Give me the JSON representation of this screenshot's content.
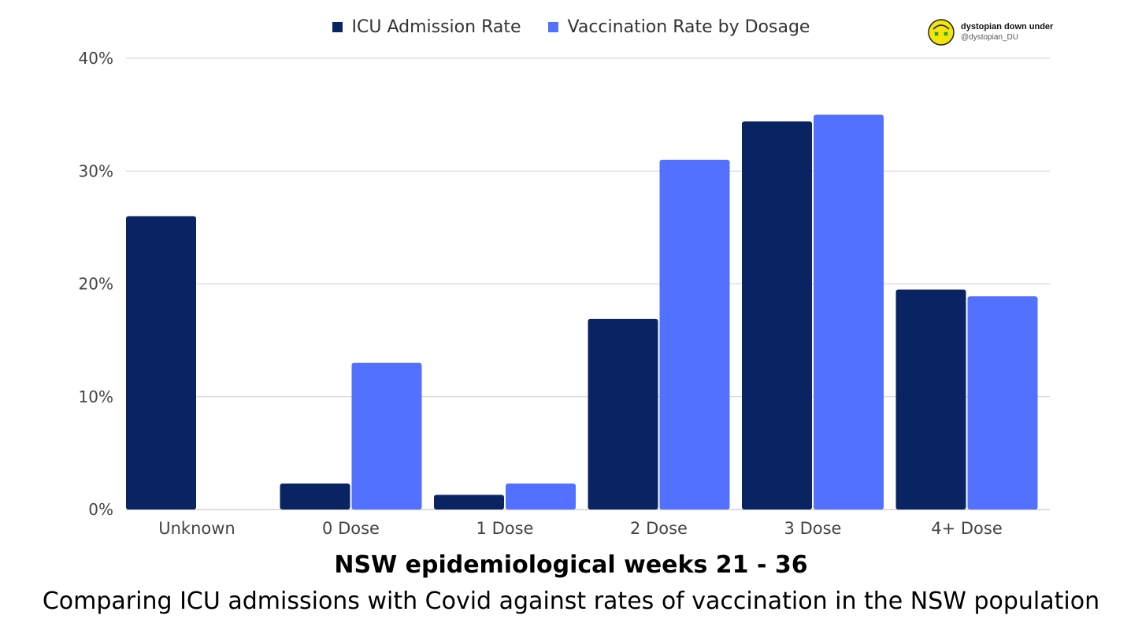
{
  "brand": {
    "name": "dystopian down under",
    "handle": "@dystopian_DU"
  },
  "colors": {
    "icu": "#0a2463",
    "vaccination": "#5271ff",
    "grid": "#d0d0d0"
  },
  "chart_data": {
    "type": "bar",
    "title": "NSW epidemiological weeks 21 - 36",
    "subtitle": "Comparing ICU admissions with Covid against rates of vaccination in the NSW population",
    "categories": [
      "Unknown",
      "0 Dose",
      "1 Dose",
      "2 Dose",
      "3 Dose",
      "4+ Dose"
    ],
    "series": [
      {
        "name": "ICU Admission Rate",
        "values": [
          26.0,
          2.3,
          1.3,
          16.9,
          34.4,
          19.5
        ]
      },
      {
        "name": "Vaccination Rate by Dosage",
        "values": [
          0.0,
          13.0,
          2.3,
          31.0,
          35.0,
          18.9
        ]
      }
    ],
    "yticks": [
      "0%",
      "10%",
      "20%",
      "30%",
      "40%"
    ],
    "ylim": [
      0,
      40
    ],
    "legend": "top-center",
    "grid": true
  }
}
